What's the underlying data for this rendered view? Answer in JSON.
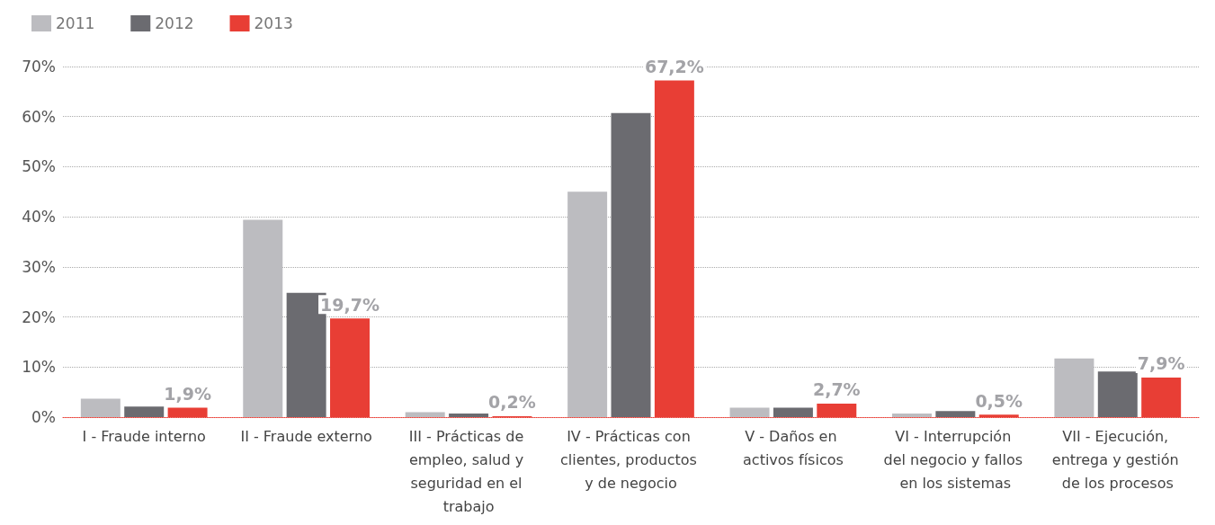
{
  "chart_data": {
    "type": "bar",
    "categories": [
      "I - Fraude interno",
      "II - Fraude externo",
      "III - Prácticas de empleo, salud y seguridad en el trabajo",
      "IV - Prácticas con clientes, productos y de negocio",
      "V - Daños en activos físicos",
      "VI - Interrupción del negocio y fallos en los sistemas",
      "VII - Ejecución, entrega y gestión de los procesos"
    ],
    "series": [
      {
        "name": "2011",
        "color": "#bcbcc0",
        "values": [
          3.7,
          39.4,
          1.0,
          45.0,
          1.9,
          0.7,
          11.7
        ]
      },
      {
        "name": "2012",
        "color": "#6b6b70",
        "values": [
          2.1,
          24.8,
          0.7,
          60.7,
          1.9,
          1.2,
          9.1
        ]
      },
      {
        "name": "2013",
        "color": "#e83e35",
        "values": [
          1.9,
          19.7,
          0.2,
          67.2,
          2.7,
          0.5,
          7.9
        ],
        "value_labels": [
          "1,9%",
          "19,7%",
          "0,2%",
          "67,2%",
          "2,7%",
          "0,5%",
          "7,9%"
        ]
      }
    ],
    "ylim": [
      0,
      70
    ],
    "yticks": [
      {
        "value": 0,
        "label": "0%"
      },
      {
        "value": 10,
        "label": "10%"
      },
      {
        "value": 20,
        "label": "20%"
      },
      {
        "value": 30,
        "label": "30%"
      },
      {
        "value": 40,
        "label": "40%"
      },
      {
        "value": 50,
        "label": "50%"
      },
      {
        "value": 60,
        "label": "60%"
      },
      {
        "value": 70,
        "label": "70%"
      }
    ],
    "grid": "y",
    "legend": "top left"
  }
}
